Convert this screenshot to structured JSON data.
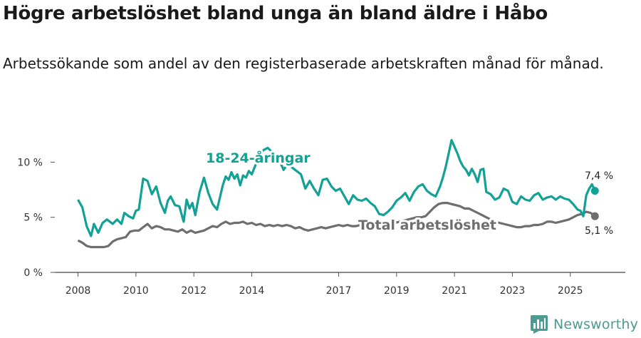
{
  "header": {
    "title": "Högre arbetslöshet bland unga än bland äldre i Håbo",
    "subtitle": "Arbetssökande som andel av den registerbaserade arbetskraften månad för månad."
  },
  "brand": {
    "name": "Newsworthy",
    "color": "#4c9a92",
    "icon": "bar-chart-logo-icon"
  },
  "chart_data": {
    "type": "line",
    "title": "Högre arbetslöshet bland unga än bland äldre i Håbo",
    "subtitle": "Arbetssökande som andel av den registerbaserade arbetskraften månad för månad.",
    "xlabel": "",
    "ylabel": "",
    "xlim": [
      2007.2,
      2026.9
    ],
    "ylim": [
      0,
      13.2
    ],
    "grid": false,
    "x_ticks": [
      2008,
      2010,
      2012,
      2014,
      2017,
      2019,
      2021,
      2023,
      2025
    ],
    "x_tick_labels": [
      "2008",
      "2010",
      "2012",
      "2014",
      "2017",
      "2019",
      "2021",
      "2023",
      "2025"
    ],
    "y_ticks": [
      0,
      5,
      10
    ],
    "y_tick_labels": [
      "0 %",
      "5 %",
      "10 %"
    ],
    "series": [
      {
        "name": "18-24-åringar",
        "color": "#12a195",
        "label_text": "18-24-åringar",
        "end_label": "7,4 %",
        "x": [
          2008.0,
          2008.15,
          2008.3,
          2008.45,
          2008.55,
          2008.7,
          2008.85,
          2009.0,
          2009.2,
          2009.35,
          2009.5,
          2009.6,
          2009.75,
          2009.9,
          2010.0,
          2010.1,
          2010.25,
          2010.4,
          2010.55,
          2010.7,
          2010.85,
          2011.0,
          2011.1,
          2011.2,
          2011.35,
          2011.5,
          2011.65,
          2011.75,
          2011.85,
          2011.95,
          2012.05,
          2012.2,
          2012.35,
          2012.5,
          2012.65,
          2012.8,
          2012.9,
          2013.0,
          2013.1,
          2013.2,
          2013.3,
          2013.4,
          2013.5,
          2013.6,
          2013.7,
          2013.8,
          2013.9,
          2014.0,
          2014.2,
          2014.4,
          2014.55,
          2014.75,
          2014.95,
          2015.1,
          2015.25,
          2015.4,
          2015.55,
          2015.7,
          2015.85,
          2016.0,
          2016.15,
          2016.3,
          2016.45,
          2016.6,
          2016.75,
          2016.9,
          2017.05,
          2017.2,
          2017.35,
          2017.5,
          2017.65,
          2017.8,
          2017.95,
          2018.1,
          2018.25,
          2018.4,
          2018.55,
          2018.7,
          2018.85,
          2019.0,
          2019.15,
          2019.3,
          2019.45,
          2019.6,
          2019.75,
          2019.9,
          2020.05,
          2020.2,
          2020.35,
          2020.5,
          2020.6,
          2020.7,
          2020.8,
          2020.9,
          2021.0,
          2021.1,
          2021.2,
          2021.3,
          2021.4,
          2021.5,
          2021.6,
          2021.7,
          2021.8,
          2021.9,
          2022.0,
          2022.1,
          2022.25,
          2022.4,
          2022.55,
          2022.7,
          2022.85,
          2023.0,
          2023.15,
          2023.3,
          2023.45,
          2023.6,
          2023.75,
          2023.9,
          2024.05,
          2024.2,
          2024.35,
          2024.5,
          2024.65,
          2024.8,
          2024.95,
          2025.1,
          2025.25,
          2025.35,
          2025.45,
          2025.55,
          2025.65,
          2025.75,
          2025.85
        ],
        "values": [
          6.6,
          5.9,
          4.2,
          3.3,
          4.4,
          3.6,
          4.5,
          4.8,
          4.4,
          4.8,
          4.4,
          5.4,
          5.1,
          4.9,
          5.6,
          5.7,
          8.5,
          8.3,
          7.1,
          7.8,
          6.3,
          5.4,
          6.5,
          6.9,
          6.1,
          6.0,
          4.6,
          6.6,
          5.8,
          6.3,
          5.2,
          7.3,
          8.6,
          7.2,
          6.2,
          5.7,
          6.8,
          7.9,
          8.7,
          8.4,
          9.1,
          8.5,
          8.9,
          7.9,
          8.8,
          8.6,
          9.2,
          8.9,
          10.2,
          11.1,
          11.3,
          10.8,
          10.2,
          9.3,
          9.9,
          9.5,
          9.2,
          8.9,
          7.6,
          8.3,
          7.6,
          7.0,
          8.4,
          8.5,
          7.8,
          7.4,
          7.6,
          6.9,
          6.2,
          7.0,
          6.6,
          6.5,
          6.7,
          6.3,
          6.0,
          5.3,
          5.2,
          5.5,
          5.9,
          6.5,
          6.8,
          7.2,
          6.5,
          7.3,
          7.8,
          8.0,
          7.4,
          7.1,
          6.9,
          7.8,
          8.6,
          9.6,
          10.8,
          12.0,
          11.4,
          10.8,
          10.1,
          9.6,
          9.3,
          8.8,
          9.4,
          8.9,
          8.2,
          9.3,
          9.4,
          7.3,
          7.1,
          6.6,
          6.8,
          7.6,
          7.4,
          6.4,
          6.2,
          6.9,
          6.6,
          6.5,
          7.0,
          7.2,
          6.6,
          6.8,
          6.9,
          6.6,
          6.9,
          6.7,
          6.6,
          6.2,
          5.7,
          5.6,
          5.1,
          7.0,
          7.6,
          8.0,
          7.4
        ]
      },
      {
        "name": "Total arbetslöshet",
        "color": "#6e6e6e",
        "label_text": "Total arbetslöshet",
        "end_label": "5,1 %",
        "x": [
          2008.0,
          2008.15,
          2008.3,
          2008.45,
          2008.6,
          2008.75,
          2008.9,
          2009.05,
          2009.2,
          2009.35,
          2009.5,
          2009.65,
          2009.8,
          2009.95,
          2010.1,
          2010.25,
          2010.4,
          2010.55,
          2010.7,
          2010.85,
          2011.0,
          2011.15,
          2011.3,
          2011.45,
          2011.6,
          2011.75,
          2011.9,
          2012.05,
          2012.2,
          2012.35,
          2012.5,
          2012.65,
          2012.8,
          2012.95,
          2013.1,
          2013.25,
          2013.4,
          2013.55,
          2013.7,
          2013.85,
          2014.0,
          2014.15,
          2014.3,
          2014.45,
          2014.6,
          2014.75,
          2014.9,
          2015.05,
          2015.2,
          2015.35,
          2015.5,
          2015.65,
          2015.8,
          2015.95,
          2016.1,
          2016.25,
          2016.4,
          2016.55,
          2016.7,
          2016.85,
          2017.0,
          2017.15,
          2017.3,
          2017.45,
          2017.6,
          2017.75,
          2017.9,
          2018.05,
          2018.2,
          2018.35,
          2018.5,
          2018.65,
          2018.8,
          2018.95,
          2019.1,
          2019.25,
          2019.4,
          2019.55,
          2019.7,
          2019.85,
          2020.0,
          2020.15,
          2020.3,
          2020.45,
          2020.6,
          2020.75,
          2020.9,
          2021.05,
          2021.2,
          2021.35,
          2021.5,
          2021.65,
          2021.8,
          2021.95,
          2022.1,
          2022.25,
          2022.4,
          2022.55,
          2022.7,
          2022.85,
          2023.0,
          2023.15,
          2023.3,
          2023.45,
          2023.6,
          2023.75,
          2023.9,
          2024.05,
          2024.2,
          2024.35,
          2024.5,
          2024.65,
          2024.8,
          2024.95,
          2025.1,
          2025.25,
          2025.4,
          2025.55,
          2025.7,
          2025.85
        ],
        "values": [
          2.9,
          2.7,
          2.4,
          2.3,
          2.3,
          2.3,
          2.3,
          2.4,
          2.8,
          3.0,
          3.1,
          3.2,
          3.7,
          3.8,
          3.8,
          4.1,
          4.4,
          4.0,
          4.2,
          4.1,
          3.9,
          3.9,
          3.8,
          3.7,
          3.9,
          3.6,
          3.8,
          3.6,
          3.7,
          3.8,
          4.0,
          4.2,
          4.1,
          4.4,
          4.6,
          4.4,
          4.5,
          4.5,
          4.6,
          4.4,
          4.5,
          4.3,
          4.4,
          4.2,
          4.3,
          4.2,
          4.3,
          4.2,
          4.3,
          4.2,
          4.0,
          4.1,
          3.9,
          3.8,
          3.9,
          4.0,
          4.1,
          4.0,
          4.1,
          4.2,
          4.3,
          4.2,
          4.3,
          4.2,
          4.2,
          4.3,
          4.2,
          4.1,
          4.0,
          4.0,
          4.1,
          4.3,
          4.4,
          4.5,
          4.6,
          4.7,
          4.8,
          4.9,
          5.0,
          5.0,
          5.1,
          5.5,
          5.9,
          6.2,
          6.3,
          6.3,
          6.2,
          6.1,
          6.0,
          5.8,
          5.8,
          5.6,
          5.4,
          5.2,
          5.0,
          4.8,
          4.6,
          4.5,
          4.4,
          4.3,
          4.2,
          4.1,
          4.1,
          4.2,
          4.2,
          4.3,
          4.3,
          4.4,
          4.6,
          4.6,
          4.5,
          4.6,
          4.7,
          4.8,
          5.0,
          5.2,
          5.3,
          5.5,
          5.4,
          5.1
        ]
      }
    ]
  }
}
